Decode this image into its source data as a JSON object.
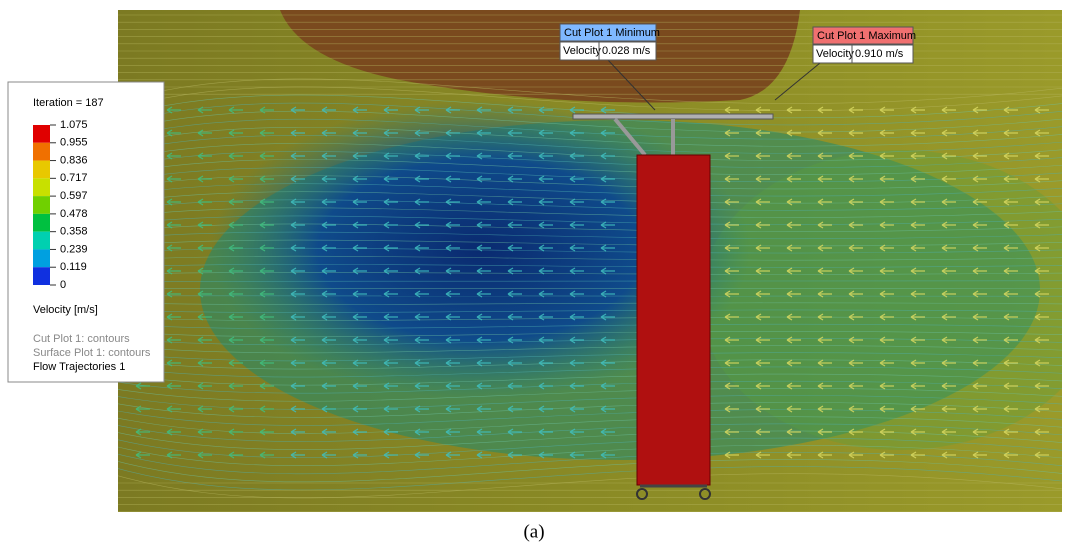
{
  "legend": {
    "iteration": "Iteration = 187",
    "scale": [
      "1.075",
      "0.955",
      "0.836",
      "0.717",
      "0.597",
      "0.478",
      "0.358",
      "0.239",
      "0.119",
      "0"
    ],
    "quantity": "Velocity [m/s]",
    "plots": [
      "Cut Plot 1: contours",
      "Surface Plot 1: contours",
      "Flow Trajectories 1"
    ]
  },
  "callouts": [
    {
      "title": "Cut Plot 1 Minimum",
      "label": "Velocity",
      "value": "0.028 m/s"
    },
    {
      "title": "Cut Plot 1 Maximum",
      "label": "Velocity",
      "value": "0.910 m/s"
    }
  ],
  "caption": "(a)"
}
